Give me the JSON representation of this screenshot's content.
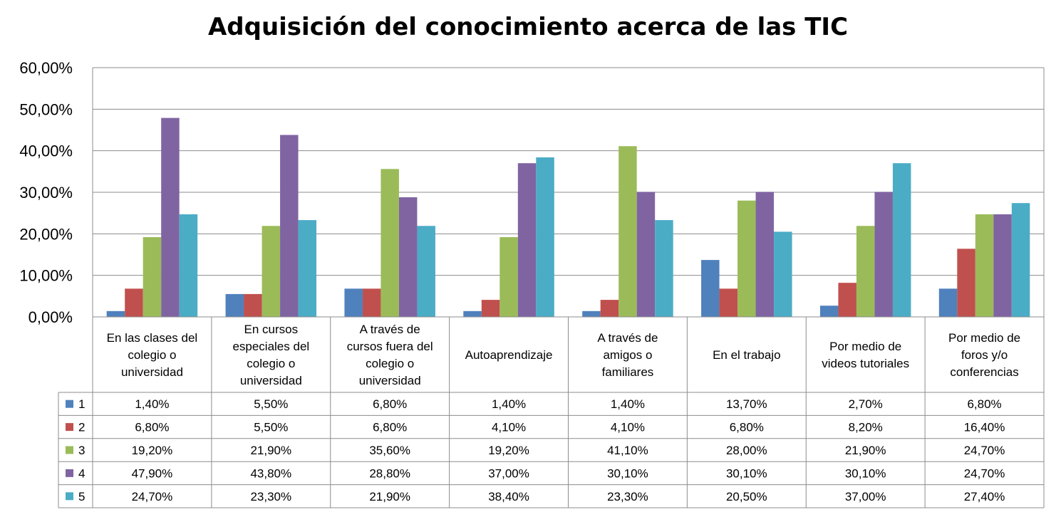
{
  "chart_data": {
    "type": "bar",
    "title": "Adquisición del conocimiento acerca de las TIC",
    "xlabel": "",
    "ylabel": "",
    "ylim": [
      0,
      60
    ],
    "yticks": [
      "0,00%",
      "10,00%",
      "20,00%",
      "30,00%",
      "40,00%",
      "50,00%",
      "60,00%"
    ],
    "grid": true,
    "legend": "data-table",
    "categories": [
      [
        "En las clases del",
        "colegio o",
        "universidad"
      ],
      [
        "En cursos",
        "especiales del",
        "colegio o",
        "universidad"
      ],
      [
        "A través de",
        "cursos fuera del",
        "colegio o",
        "universidad"
      ],
      [
        "Autoaprendizaje"
      ],
      [
        "A través de",
        "amigos o",
        "familiares"
      ],
      [
        "En el trabajo"
      ],
      [
        "Por medio de",
        "videos tutoriales"
      ],
      [
        "Por medio de",
        "foros y/o",
        "conferencias"
      ]
    ],
    "series": [
      {
        "name": "1",
        "color": "#4F81BD",
        "values": [
          1.4,
          5.5,
          6.8,
          1.4,
          1.4,
          13.7,
          2.7,
          6.8
        ],
        "labels": [
          "1,40%",
          "5,50%",
          "6,80%",
          "1,40%",
          "1,40%",
          "13,70%",
          "2,70%",
          "6,80%"
        ]
      },
      {
        "name": "2",
        "color": "#C0504D",
        "values": [
          6.8,
          5.5,
          6.8,
          4.1,
          4.1,
          6.8,
          8.2,
          16.4
        ],
        "labels": [
          "6,80%",
          "5,50%",
          "6,80%",
          "4,10%",
          "4,10%",
          "6,80%",
          "8,20%",
          "16,40%"
        ]
      },
      {
        "name": "3",
        "color": "#9BBB59",
        "values": [
          19.2,
          21.9,
          35.6,
          19.2,
          41.1,
          28.0,
          21.9,
          24.7
        ],
        "labels": [
          "19,20%",
          "21,90%",
          "35,60%",
          "19,20%",
          "41,10%",
          "28,00%",
          "21,90%",
          "24,70%"
        ]
      },
      {
        "name": "4",
        "color": "#8064A2",
        "values": [
          47.9,
          43.8,
          28.8,
          37.0,
          30.1,
          30.1,
          30.1,
          24.7
        ],
        "labels": [
          "47,90%",
          "43,80%",
          "28,80%",
          "37,00%",
          "30,10%",
          "30,10%",
          "30,10%",
          "24,70%"
        ]
      },
      {
        "name": "5",
        "color": "#4BACC6",
        "values": [
          24.7,
          23.3,
          21.9,
          38.4,
          23.3,
          20.5,
          37.0,
          27.4
        ],
        "labels": [
          "24,70%",
          "23,30%",
          "21,90%",
          "38,40%",
          "23,30%",
          "20,50%",
          "37,00%",
          "27,40%"
        ]
      }
    ]
  }
}
